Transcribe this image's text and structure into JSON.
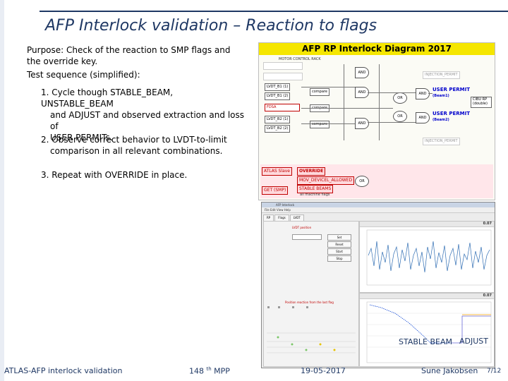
{
  "slide": {
    "title": "AFP Interlock validation – Reaction to flags",
    "purpose": "Purpose: Check of the reaction to SMP flags and the override key.",
    "sequence_heading": "Test sequence (simplified):",
    "items": [
      {
        "line1": "1. Cycle though STABLE_BEAM, UNSTABLE_BEAM",
        "line2": "and ADJUST and observed extraction and loss of",
        "line3": "USER PERMITs."
      },
      {
        "line1": "2. Observe correct behavior to LVDT-to-limit",
        "line2": "comparison in all relevant combinations."
      },
      {
        "line1": "3. Repeat with OVERRIDE in place."
      }
    ]
  },
  "diagram": {
    "title": "AFP RP Interlock Diagram 2017",
    "labels": {
      "motor_control": "MOTOR CONTROL RACK",
      "user_permit1": "USER PERMIT",
      "beam1": "(Beam1)",
      "user_permit2": "USER PERMIT",
      "beam2": "(Beam2)",
      "fdsa": "FDSA",
      "override": "OVERRIDE",
      "atlas_slave": "ATLAS Slave",
      "mov_devicel": "MOV_DEVICEL_ALLOWED",
      "stable_beams": "STABLE BEAMS",
      "get_smp": "GET (SMP)",
      "all_machine": "all machine flags",
      "and": "AND",
      "or": "OR",
      "compare": "compare",
      "lvdt1": "LVDT_B1 (1)",
      "lvdt2": "LVDT_B1 (2)",
      "lvdt3": "LVDT_B2 (1)",
      "lvdt4": "LVDT_B2 (2)",
      "cibu": "CIBU RP (double)",
      "injection1": "INJECTION_PERMIT",
      "injection2": "INJECTION_PERMIT"
    }
  },
  "app": {
    "title": "AFP Interlock",
    "menu": "File  Edit  View  Help",
    "tabs": [
      "RP",
      "Flags",
      "LVDT"
    ],
    "left_panel_title": "LVDT position",
    "chart1_value": "0.07",
    "chart2_value": "0.07",
    "buttons": [
      "Set",
      "Reset",
      "Start",
      "Stop"
    ],
    "result_title": "Position reaction from the last flag"
  },
  "annotations": {
    "stable_beam": "STABLE BEAM",
    "adjust": "ADJUST"
  },
  "footer": {
    "left": "ATLAS-AFP interlock validation",
    "meeting_num": "148",
    "meeting_sup": "th",
    "meeting_suffix": " MPP",
    "date": "19-05-2017",
    "author": "Sune Jakobsen",
    "page": "7/12"
  },
  "colors": {
    "title": "#1f3864",
    "diagram_header": "#f5e600",
    "permit_text": "#0000cc",
    "alert": "#c00000"
  }
}
